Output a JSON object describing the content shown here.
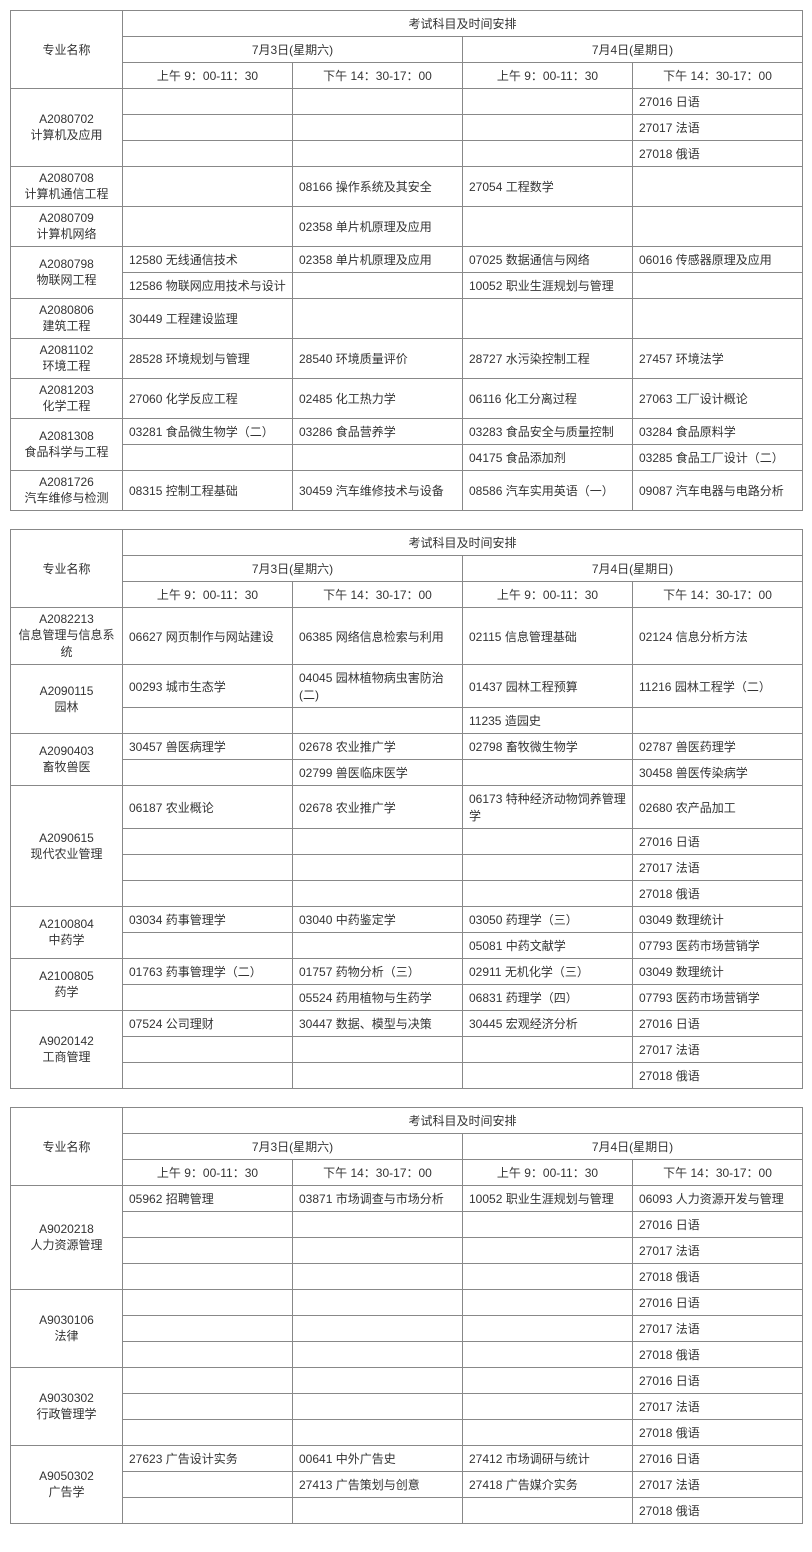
{
  "header": {
    "major_label": "专业名称",
    "schedule_label": "考试科目及时间安排",
    "day1": "7月3日(星期六)",
    "day2": "7月4日(星期日)",
    "slot1": "上午 9：00-11：30",
    "slot2": "下午 14：30-17：00",
    "slot3": "上午 9：00-11：30",
    "slot4": "下午 14：30-17：00"
  },
  "tables": [
    {
      "majors": [
        {
          "code": "A2080702",
          "name": "计算机及应用",
          "rows": [
            [
              "",
              "",
              "",
              "27016 日语"
            ],
            [
              "",
              "",
              "",
              "27017 法语"
            ],
            [
              "",
              "",
              "",
              "27018 俄语"
            ]
          ]
        },
        {
          "code": "A2080708",
          "name": "计算机通信工程",
          "rows": [
            [
              "",
              "08166 操作系统及其安全",
              "27054 工程数学",
              ""
            ]
          ]
        },
        {
          "code": "A2080709",
          "name": "计算机网络",
          "rows": [
            [
              "",
              "02358 单片机原理及应用",
              "",
              ""
            ]
          ]
        },
        {
          "code": "A2080798",
          "name": "物联网工程",
          "rows": [
            [
              "12580 无线通信技术",
              "02358 单片机原理及应用",
              "07025 数据通信与网络",
              "06016 传感器原理及应用"
            ],
            [
              "12586 物联网应用技术与设计",
              "",
              "10052 职业生涯规划与管理",
              ""
            ]
          ]
        },
        {
          "code": "A2080806",
          "name": "建筑工程",
          "rows": [
            [
              "30449 工程建设监理",
              "",
              "",
              ""
            ]
          ]
        },
        {
          "code": "A2081102",
          "name": "环境工程",
          "rows": [
            [
              "28528 环境规划与管理",
              "28540 环境质量评价",
              "28727 水污染控制工程",
              "27457 环境法学"
            ]
          ]
        },
        {
          "code": "A2081203",
          "name": "化学工程",
          "rows": [
            [
              "27060 化学反应工程",
              "02485 化工热力学",
              "06116 化工分离过程",
              "27063 工厂设计概论"
            ]
          ]
        },
        {
          "code": "A2081308",
          "name": "食品科学与工程",
          "rows": [
            [
              "03281 食品微生物学（二）",
              "03286 食品营养学",
              "03283 食品安全与质量控制",
              "03284 食品原料学"
            ],
            [
              "",
              "",
              "04175 食品添加剂",
              "03285 食品工厂设计（二）"
            ]
          ]
        },
        {
          "code": "A2081726",
          "name": "汽车维修与检测",
          "rows": [
            [
              "08315 控制工程基础",
              "30459 汽车维修技术与设备",
              "08586 汽车实用英语（一）",
              "09087 汽车电器与电路分析"
            ]
          ]
        }
      ]
    },
    {
      "majors": [
        {
          "code": "A2082213",
          "name": "信息管理与信息系统",
          "rows": [
            [
              "06627 网页制作与网站建设",
              "06385 网络信息检索与利用",
              "02115 信息管理基础",
              "02124 信息分析方法"
            ]
          ]
        },
        {
          "code": "A2090115",
          "name": "园林",
          "rows": [
            [
              "00293 城市生态学",
              "04045 园林植物病虫害防治(二)",
              "01437 园林工程预算",
              "11216 园林工程学（二）"
            ],
            [
              "",
              "",
              "11235 造园史",
              ""
            ]
          ]
        },
        {
          "code": "A2090403",
          "name": "畜牧兽医",
          "rows": [
            [
              "30457 兽医病理学",
              "02678 农业推广学",
              "02798 畜牧微生物学",
              "02787 兽医药理学"
            ],
            [
              "",
              "02799 兽医临床医学",
              "",
              "30458 兽医传染病学"
            ]
          ]
        },
        {
          "code": "A2090615",
          "name": "现代农业管理",
          "rows": [
            [
              "06187 农业概论",
              "02678 农业推广学",
              "06173 特种经济动物饲养管理学",
              "02680 农产品加工"
            ],
            [
              "",
              "",
              "",
              "27016 日语"
            ],
            [
              "",
              "",
              "",
              "27017 法语"
            ],
            [
              "",
              "",
              "",
              "27018 俄语"
            ]
          ]
        },
        {
          "code": "A2100804",
          "name": "中药学",
          "rows": [
            [
              "03034 药事管理学",
              "03040 中药鉴定学",
              "03050 药理学（三）",
              "03049 数理统计"
            ],
            [
              "",
              "",
              "05081 中药文献学",
              "07793 医药市场营销学"
            ]
          ]
        },
        {
          "code": "A2100805",
          "name": "药学",
          "rows": [
            [
              "01763 药事管理学（二）",
              "01757 药物分析（三）",
              "02911 无机化学（三）",
              "03049 数理统计"
            ],
            [
              "",
              "05524 药用植物与生药学",
              "06831 药理学（四）",
              "07793 医药市场营销学"
            ]
          ]
        },
        {
          "code": "A9020142",
          "name": "工商管理",
          "rows": [
            [
              "07524 公司理财",
              "30447 数据、模型与决策",
              "30445 宏观经济分析",
              "27016 日语"
            ],
            [
              "",
              "",
              "",
              "27017 法语"
            ],
            [
              "",
              "",
              "",
              "27018 俄语"
            ]
          ]
        }
      ]
    },
    {
      "majors": [
        {
          "code": "A9020218",
          "name": "人力资源管理",
          "rows": [
            [
              "05962 招聘管理",
              "03871 市场调查与市场分析",
              "10052 职业生涯规划与管理",
              "06093 人力资源开发与管理"
            ],
            [
              "",
              "",
              "",
              "27016 日语"
            ],
            [
              "",
              "",
              "",
              "27017 法语"
            ],
            [
              "",
              "",
              "",
              "27018 俄语"
            ]
          ]
        },
        {
          "code": "A9030106",
          "name": "法律",
          "rows": [
            [
              "",
              "",
              "",
              "27016 日语"
            ],
            [
              "",
              "",
              "",
              "27017 法语"
            ],
            [
              "",
              "",
              "",
              "27018 俄语"
            ]
          ]
        },
        {
          "code": "A9030302",
          "name": "行政管理学",
          "rows": [
            [
              "",
              "",
              "",
              "27016 日语"
            ],
            [
              "",
              "",
              "",
              "27017 法语"
            ],
            [
              "",
              "",
              "",
              "27018 俄语"
            ]
          ]
        },
        {
          "code": "A9050302",
          "name": "广告学",
          "rows": [
            [
              "27623 广告设计实务",
              "00641 中外广告史",
              "27412 市场调研与统计",
              "27016 日语"
            ],
            [
              "",
              "27413 广告策划与创意",
              "27418 广告媒介实务",
              "27017 法语"
            ],
            [
              "",
              "",
              "",
              "27018 俄语"
            ]
          ]
        }
      ]
    }
  ]
}
